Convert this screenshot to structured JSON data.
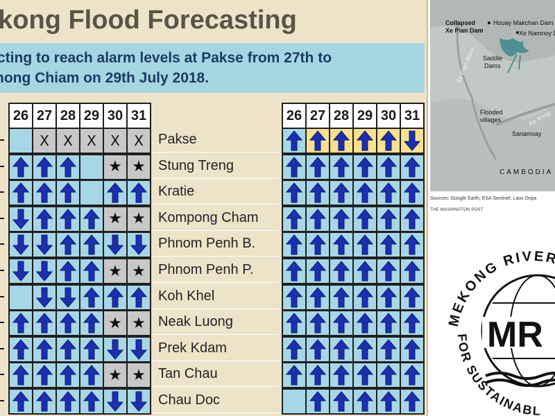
{
  "poster": {
    "title": "ekong Flood Forecasting",
    "subtitle_line1": "cting to reach alarm levels at Pakse from 27th to",
    "subtitle_line2": "hong Chiam on 29th July 2018.",
    "left_days": [
      "26",
      "27",
      "28",
      "29",
      "30",
      "31"
    ],
    "right_days": [
      "26",
      "27",
      "28",
      "29",
      "30",
      "31"
    ],
    "stations": [
      "Pakse",
      "Stung Treng",
      "Kratie",
      "Kompong Cham",
      "Phnom Penh B.",
      "Phnom Penh P.",
      "Koh Khel",
      "Neak Luong",
      "Prek Kdam",
      "Tan Chau",
      "Chau Doc"
    ],
    "left_grid": [
      [
        "blank-blue",
        "X",
        "X",
        "X",
        "X",
        "X"
      ],
      [
        "up",
        "up",
        "up",
        "blank-blue",
        "star",
        "star"
      ],
      [
        "up",
        "up",
        "up",
        "blank-blue",
        "up",
        "up"
      ],
      [
        "down",
        "up",
        "up",
        "up",
        "star",
        "star"
      ],
      [
        "down",
        "down",
        "up",
        "up",
        "down",
        "down"
      ],
      [
        "down",
        "down",
        "up",
        "up",
        "star",
        "star"
      ],
      [
        "blank-blue",
        "down",
        "down",
        "up",
        "up",
        "up"
      ],
      [
        "up",
        "up",
        "up",
        "up",
        "star",
        "star"
      ],
      [
        "up",
        "up",
        "up",
        "up",
        "down",
        "down"
      ],
      [
        "up",
        "up",
        "up",
        "up",
        "star",
        "star"
      ],
      [
        "up",
        "up",
        "up",
        "up",
        "down",
        "down"
      ]
    ],
    "right_grid": [
      [
        "up",
        "up-y",
        "up-y",
        "up-y",
        "up-y",
        "down-y"
      ],
      [
        "up",
        "up",
        "up",
        "up",
        "up",
        "up"
      ],
      [
        "up",
        "up",
        "up",
        "up",
        "up",
        "up"
      ],
      [
        "up",
        "up",
        "up",
        "up",
        "up",
        "up"
      ],
      [
        "up",
        "up",
        "up",
        "up",
        "up",
        "up"
      ],
      [
        "up",
        "up",
        "up",
        "up",
        "up",
        "up"
      ],
      [
        "up",
        "up",
        "up",
        "up",
        "up",
        "up"
      ],
      [
        "up",
        "up",
        "up",
        "up",
        "up",
        "up"
      ],
      [
        "up",
        "up",
        "up",
        "up",
        "up",
        "up"
      ],
      [
        "up",
        "up",
        "up",
        "up",
        "up",
        "up"
      ],
      [
        "blank-blue",
        "up",
        "up",
        "up",
        "up",
        "up"
      ]
    ],
    "symbols": {
      "x": "X",
      "star": "★"
    },
    "colors": {
      "arrow": "#1c2fb0",
      "cell_blue": "#a7d7e6",
      "cell_gray": "#c8c8c8",
      "cell_yellow": "#f7e08e"
    }
  },
  "map": {
    "labels": {
      "collapsed": "Collapsed",
      "dam_name": "Xe Pian Dam",
      "houay": "Houay Makchan Dam",
      "namnoy": "Xe Namnoy D",
      "saddle": "Saddle",
      "dams": "Dams",
      "river1": "Xe Pian River",
      "flooded1": "Flooded",
      "flooded2": "villages",
      "river2": "Xe Kong",
      "sanamxay": "Sanamxay",
      "cambodia": "CAMBODIA"
    },
    "sources": "Sources: Google Earth; ESA Sentinel; Laos Depa",
    "credit": "THE WASHINGTON POST"
  },
  "logo": {
    "top_text": "MEKONG RIVER",
    "bottom_text": "FOR SUSTAINABL",
    "initials": "MR"
  }
}
